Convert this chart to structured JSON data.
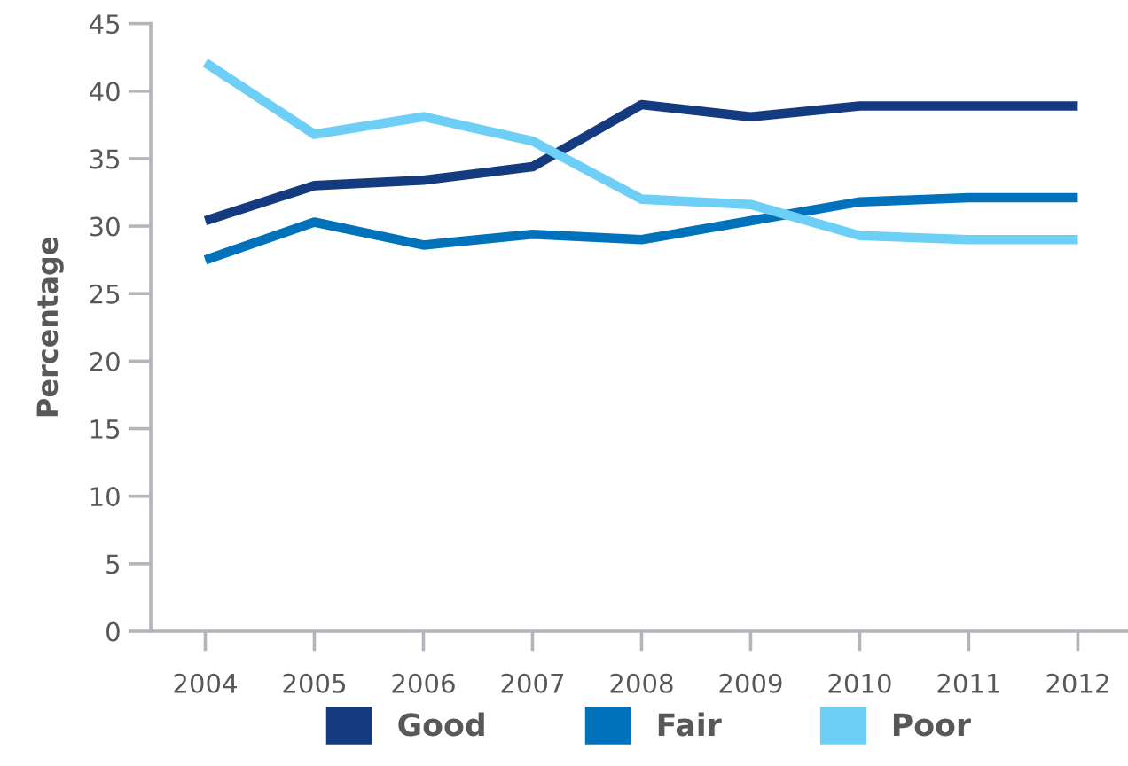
{
  "chart_data": {
    "type": "line",
    "ylabel": "Percentage",
    "categories": [
      "2004",
      "2005",
      "2006",
      "2007",
      "2008",
      "2009",
      "2010",
      "2011",
      "2012"
    ],
    "ylim": [
      0,
      45
    ],
    "yticks": [
      0,
      5,
      10,
      15,
      20,
      25,
      30,
      35,
      40,
      45
    ],
    "grid": false,
    "legend": "bottom",
    "line_style": "solid",
    "series": [
      {
        "name": "Good",
        "color": "#143a80",
        "values": [
          30.4,
          33.0,
          33.4,
          34.4,
          39.0,
          38.1,
          38.9,
          38.9,
          38.9
        ]
      },
      {
        "name": "Fair",
        "color": "#0072bc",
        "values": [
          27.5,
          30.3,
          28.6,
          29.4,
          29.0,
          30.4,
          31.8,
          32.1,
          32.1
        ]
      },
      {
        "name": "Poor",
        "color": "#6dcff6",
        "values": [
          42.1,
          36.8,
          38.1,
          36.3,
          32.0,
          31.6,
          29.3,
          29.0,
          29.0
        ]
      }
    ]
  }
}
